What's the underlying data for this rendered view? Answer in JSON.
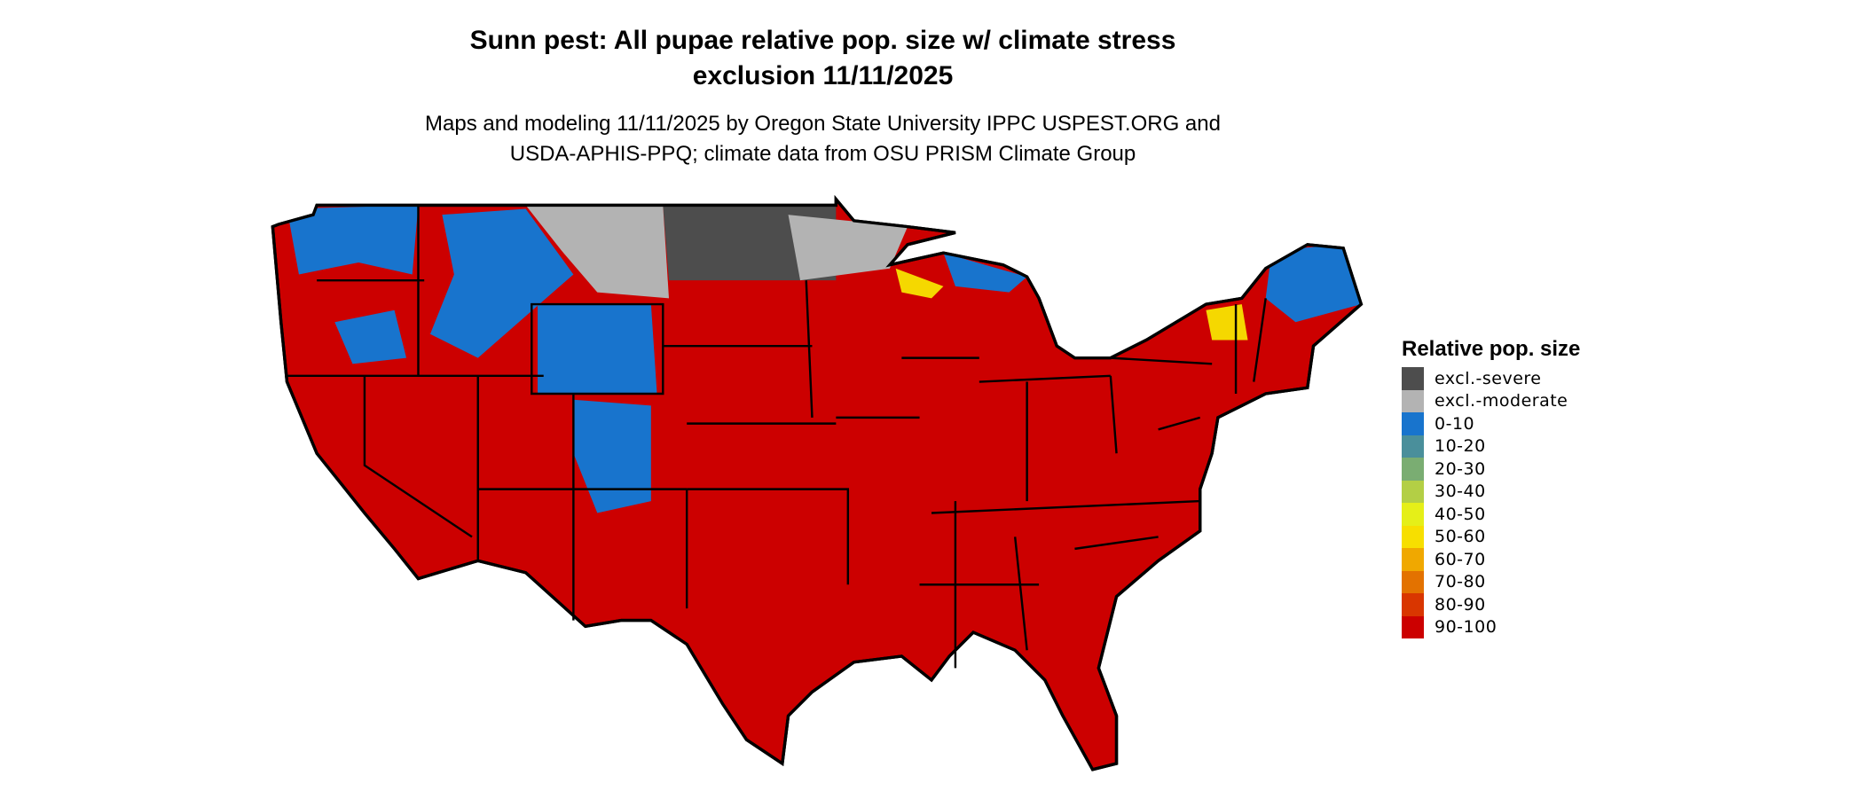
{
  "title": {
    "line1": "Sunn pest: All pupae relative pop. size w/ climate stress",
    "line2": "exclusion 11/11/2025"
  },
  "subtitle": {
    "line1": "Maps and modeling 11/11/2025 by Oregon State University IPPC USPEST.ORG and",
    "line2": "USDA-APHIS-PPQ; climate data from OSU PRISM Climate Group"
  },
  "map": {
    "region": "Contiguous United States",
    "dominant_category": "90-100",
    "colors": {
      "land": "#cc0000",
      "low": "#1874cd",
      "severe": "#4d4d4d",
      "moderate": "#b3b3b3",
      "mid": "#f5d800",
      "border": "#000000"
    }
  },
  "legend": {
    "title": "Relative pop. size",
    "items": [
      {
        "label": "excl.-severe",
        "color": "#4d4d4d"
      },
      {
        "label": "excl.-moderate",
        "color": "#b3b3b3"
      },
      {
        "label": "0-10",
        "color": "#1874cd"
      },
      {
        "label": "10-20",
        "color": "#4a8f9b"
      },
      {
        "label": "20-30",
        "color": "#7aad72"
      },
      {
        "label": "30-40",
        "color": "#b3cf45"
      },
      {
        "label": "40-50",
        "color": "#e5ef18"
      },
      {
        "label": "50-60",
        "color": "#f7df00"
      },
      {
        "label": "60-70",
        "color": "#f0a800"
      },
      {
        "label": "70-80",
        "color": "#e37200"
      },
      {
        "label": "80-90",
        "color": "#d93600"
      },
      {
        "label": "90-100",
        "color": "#cc0000"
      }
    ]
  }
}
